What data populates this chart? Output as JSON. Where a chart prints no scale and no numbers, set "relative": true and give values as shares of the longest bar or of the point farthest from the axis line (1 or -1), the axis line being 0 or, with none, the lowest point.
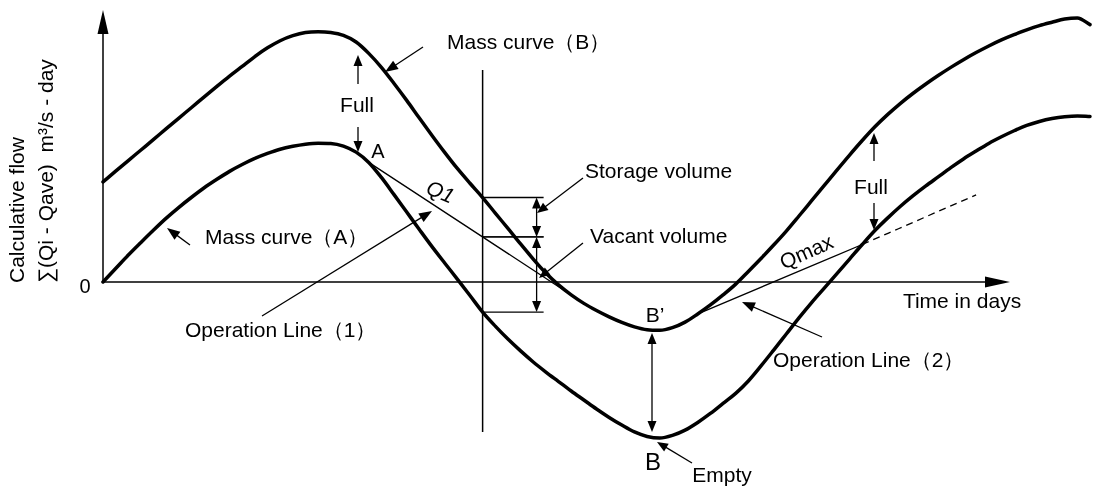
{
  "chart_data": {
    "type": "line",
    "relative": true,
    "tick_labels": false,
    "marker": "none",
    "xlabel": "Time in days",
    "ylabel": "Calculative flow\n∑(Qi - Qave)  m³/s - day",
    "categories": [
      null,
      null,
      null,
      null,
      null,
      null,
      null,
      null,
      null,
      null,
      null,
      null,
      null,
      null,
      null,
      null,
      null,
      null,
      null,
      null,
      null,
      null,
      null,
      null,
      null,
      null,
      null,
      null,
      null,
      null,
      null,
      null,
      null,
      null,
      null,
      null,
      null,
      null,
      null,
      null,
      null,
      null,
      null,
      null,
      null,
      null,
      null,
      null,
      null,
      null,
      null,
      null,
      null,
      null,
      null,
      null,
      null,
      null,
      null,
      null,
      null,
      null,
      null,
      null,
      null,
      null,
      null,
      null,
      null,
      null,
      null,
      null,
      null,
      null,
      null,
      null,
      null,
      null,
      null
    ],
    "series": [
      {
        "name": "Mass curve（B）",
        "color": "#000000",
        "values": [
          0.379,
          0.42,
          0.46,
          0.5,
          0.54,
          0.581,
          0.621,
          0.661,
          0.701,
          0.741,
          0.78,
          0.817,
          0.854,
          0.887,
          0.914,
          0.933,
          0.945,
          0.948,
          0.945,
          0.934,
          0.909,
          0.866,
          0.813,
          0.752,
          0.688,
          0.621,
          0.555,
          0.491,
          0.43,
          0.374,
          0.32,
          0.261,
          0.203,
          0.144,
          0.087,
          0.034,
          -0.011,
          -0.049,
          -0.081,
          -0.108,
          -0.132,
          -0.153,
          -0.17,
          -0.181,
          -0.183,
          -0.173,
          -0.152,
          -0.121,
          -0.087,
          -0.049,
          -0.008,
          0.04,
          0.089,
          0.14,
          0.193,
          0.25,
          0.308,
          0.366,
          0.424,
          0.481,
          0.536,
          0.588,
          0.634,
          0.676,
          0.714,
          0.749,
          0.782,
          0.813,
          0.842,
          0.869,
          0.894,
          0.917,
          0.937,
          0.955,
          0.971,
          0.984,
          0.996,
          1.0,
          0.975
        ]
      },
      {
        "name": "Mass curve（A）",
        "color": "#000000",
        "values": [
          0,
          0.051,
          0.102,
          0.15,
          0.197,
          0.242,
          0.283,
          0.321,
          0.357,
          0.389,
          0.419,
          0.445,
          0.468,
          0.487,
          0.503,
          0.514,
          0.522,
          0.526,
          0.525,
          0.515,
          0.492,
          0.453,
          0.396,
          0.331,
          0.265,
          0.199,
          0.134,
          0.072,
          0.011,
          -0.051,
          -0.114,
          -0.167,
          -0.216,
          -0.261,
          -0.303,
          -0.341,
          -0.377,
          -0.413,
          -0.447,
          -0.481,
          -0.513,
          -0.542,
          -0.568,
          -0.585,
          -0.591,
          -0.581,
          -0.561,
          -0.532,
          -0.498,
          -0.46,
          -0.422,
          -0.375,
          -0.318,
          -0.258,
          -0.197,
          -0.136,
          -0.078,
          -0.023,
          0.032,
          0.087,
          0.142,
          0.195,
          0.242,
          0.286,
          0.326,
          0.363,
          0.398,
          0.433,
          0.466,
          0.496,
          0.525,
          0.55,
          0.573,
          0.593,
          0.608,
          0.619,
          0.626,
          0.629,
          0.627
        ]
      },
      {
        "name": "Operation Line（1）",
        "color": "#000000",
        "values": [
          null,
          null,
          null,
          null,
          null,
          null,
          null,
          null,
          null,
          null,
          null,
          null,
          null,
          null,
          null,
          null,
          null,
          null,
          null,
          null,
          null,
          0.453,
          null,
          null,
          null,
          null,
          null,
          null,
          null,
          null,
          null,
          null,
          null,
          null,
          null,
          null,
          null,
          -0.049,
          null,
          null,
          null,
          null,
          null,
          null,
          null,
          null,
          null,
          null,
          null,
          null,
          null,
          null,
          null,
          null,
          null,
          null,
          null,
          null,
          null,
          null,
          null,
          null,
          null,
          null,
          null,
          null,
          null,
          null,
          null,
          null,
          null,
          null,
          null,
          null,
          null,
          null,
          null,
          null,
          null
        ]
      },
      {
        "name": "Operation Line（2）",
        "color": "#000000",
        "values": [
          null,
          null,
          null,
          null,
          null,
          null,
          null,
          null,
          null,
          null,
          null,
          null,
          null,
          null,
          null,
          null,
          null,
          null,
          null,
          null,
          null,
          null,
          null,
          null,
          null,
          null,
          null,
          null,
          null,
          null,
          null,
          null,
          null,
          null,
          null,
          null,
          null,
          null,
          null,
          null,
          null,
          null,
          null,
          null,
          null,
          null,
          null,
          -0.121,
          null,
          null,
          null,
          null,
          null,
          null,
          null,
          null,
          null,
          null,
          null,
          null,
          0.142,
          null,
          null,
          null,
          null,
          null,
          null,
          null,
          null,
          null,
          null,
          null,
          null,
          null,
          null,
          null,
          null,
          null,
          null
        ]
      },
      {
        "color": "#000000",
        "line_style": "dashed",
        "values": [
          null,
          null,
          null,
          null,
          null,
          null,
          null,
          null,
          null,
          null,
          null,
          null,
          null,
          null,
          null,
          null,
          null,
          null,
          null,
          null,
          null,
          null,
          null,
          null,
          null,
          null,
          null,
          null,
          null,
          null,
          null,
          null,
          null,
          null,
          null,
          null,
          null,
          null,
          null,
          null,
          null,
          null,
          null,
          null,
          null,
          null,
          null,
          null,
          null,
          null,
          null,
          null,
          null,
          null,
          null,
          null,
          null,
          null,
          null,
          null,
          0.142,
          null,
          null,
          null,
          null,
          null,
          null,
          null,
          null,
          0.33,
          null,
          null,
          null,
          null,
          null,
          null,
          null,
          null,
          null
        ]
      }
    ],
    "annotations": [
      "Full",
      "A",
      "Q1",
      "Storage volume",
      "Vacant volume",
      "B’",
      "B",
      "Empty",
      "Qmax",
      "Full",
      "0"
    ]
  }
}
